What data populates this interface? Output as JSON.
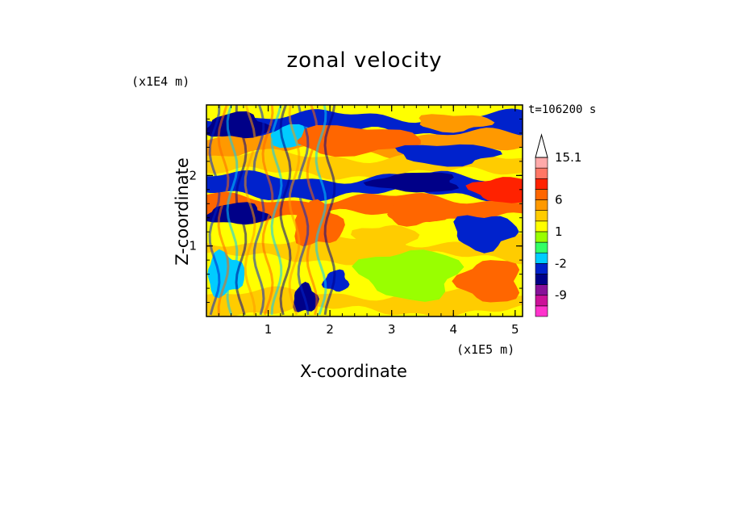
{
  "chart_data": {
    "type": "heatmap",
    "title": "zonal velocity",
    "xlabel": "X-coordinate",
    "ylabel": "Z-coordinate",
    "x_unit": "(x1E5 m)",
    "y_unit": "(x1E4 m)",
    "annotation": "t=106200 s",
    "xlim": [
      0,
      5.12
    ],
    "ylim": [
      0,
      3.0
    ],
    "x_ticks": [
      1,
      2,
      3,
      4,
      5
    ],
    "y_ticks": [
      1,
      2
    ],
    "colorbar": {
      "labels": [
        "15.1",
        "6",
        "1",
        "-2",
        "-9"
      ],
      "levels": [
        -15,
        -12,
        -9,
        -6,
        -4,
        -2,
        -1,
        0,
        1,
        2,
        4,
        6,
        8,
        10,
        12,
        15.1
      ],
      "colors": [
        "#ff33cc",
        "#cc1199",
        "#881199",
        "#000088",
        "#0022cc",
        "#00ccff",
        "#33ff66",
        "#99ff00",
        "#ffff00",
        "#ffcc00",
        "#ff9900",
        "#ff6600",
        "#ff2200",
        "#ff7766",
        "#ffaaaa",
        "#ffffff"
      ]
    },
    "bands": [
      {
        "z": 2.72,
        "color": "#0022cc"
      },
      {
        "z": 2.45,
        "color": "#ff9900"
      },
      {
        "z": 2.15,
        "color": "#ffcc00"
      },
      {
        "z": 1.85,
        "color": "#0022cc"
      },
      {
        "z": 1.55,
        "color": "#ff6600"
      },
      {
        "z": 1.25,
        "color": "#ffff00"
      },
      {
        "z": 0.95,
        "color": "#ffcc00"
      },
      {
        "z": 0.55,
        "color": "#ffff00"
      },
      {
        "z": 0.2,
        "color": "#ffcc00"
      }
    ],
    "patches": [
      {
        "x": 0.5,
        "z": 2.7,
        "rx": 0.5,
        "rz": 0.18,
        "color": "#000088"
      },
      {
        "x": 1.5,
        "z": 2.55,
        "rx": 0.5,
        "rz": 0.15,
        "color": "#00ccff"
      },
      {
        "x": 2.4,
        "z": 2.5,
        "rx": 1.0,
        "rz": 0.2,
        "color": "#ff6600"
      },
      {
        "x": 3.9,
        "z": 2.3,
        "rx": 0.8,
        "rz": 0.15,
        "color": "#0022cc"
      },
      {
        "x": 4.8,
        "z": 1.8,
        "rx": 0.5,
        "rz": 0.18,
        "color": "#ff2200"
      },
      {
        "x": 3.4,
        "z": 1.9,
        "rx": 0.7,
        "rz": 0.14,
        "color": "#000088"
      },
      {
        "x": 0.5,
        "z": 1.45,
        "rx": 0.5,
        "rz": 0.15,
        "color": "#000088"
      },
      {
        "x": 1.8,
        "z": 1.3,
        "rx": 0.4,
        "rz": 0.3,
        "color": "#ff6600"
      },
      {
        "x": 3.4,
        "z": 1.45,
        "rx": 0.5,
        "rz": 0.15,
        "color": "#ff6600"
      },
      {
        "x": 4.5,
        "z": 1.2,
        "rx": 0.5,
        "rz": 0.25,
        "color": "#0022cc"
      },
      {
        "x": 3.3,
        "z": 0.6,
        "rx": 0.8,
        "rz": 0.35,
        "color": "#99ff00"
      },
      {
        "x": 4.6,
        "z": 0.5,
        "rx": 0.5,
        "rz": 0.3,
        "color": "#ff6600"
      },
      {
        "x": 2.1,
        "z": 0.5,
        "rx": 0.2,
        "rz": 0.15,
        "color": "#0022cc"
      },
      {
        "x": 1.6,
        "z": 0.25,
        "rx": 0.2,
        "rz": 0.2,
        "color": "#000088"
      },
      {
        "x": 0.3,
        "z": 0.6,
        "rx": 0.3,
        "rz": 0.3,
        "color": "#00ccff"
      },
      {
        "x": 4.0,
        "z": 2.75,
        "rx": 0.6,
        "rz": 0.12,
        "color": "#ff9900"
      },
      {
        "x": 2.9,
        "z": 1.1,
        "rx": 0.5,
        "rz": 0.2,
        "color": "#ffcc00"
      }
    ]
  }
}
